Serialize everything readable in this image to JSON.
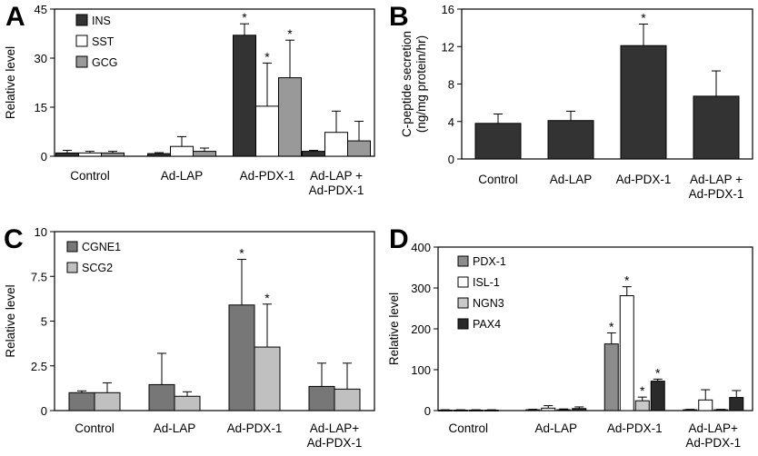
{
  "chart_data": [
    {
      "panel_label": "A",
      "type": "bar",
      "ylabel": "Relative level",
      "ylim": [
        0,
        45
      ],
      "yticks": [
        "0",
        "15",
        "30",
        "45"
      ],
      "categories": [
        [
          "Control"
        ],
        [
          "Ad-LAP"
        ],
        [
          "Ad-PDX-1"
        ],
        [
          "Ad-LAP +",
          "Ad-PDX-1"
        ]
      ],
      "legend_position": "top-left",
      "series": [
        {
          "name": "INS",
          "color": "#333333",
          "values": [
            1.0,
            0.8,
            37.0,
            1.5
          ],
          "errors": [
            0.8,
            0.3,
            3.5,
            0.3
          ],
          "significant": [
            false,
            false,
            true,
            false
          ]
        },
        {
          "name": "SST",
          "color": "#ffffff",
          "values": [
            1.0,
            3.0,
            15.3,
            7.3
          ],
          "errors": [
            0.5,
            3.0,
            13.2,
            6.5
          ],
          "significant": [
            false,
            false,
            true,
            false
          ]
        },
        {
          "name": "GCG",
          "color": "#999999",
          "values": [
            1.0,
            1.5,
            24.0,
            4.7
          ],
          "errors": [
            0.5,
            1.0,
            11.5,
            6.0
          ],
          "significant": [
            false,
            false,
            true,
            false
          ]
        }
      ],
      "significance_mark": "*"
    },
    {
      "panel_label": "B",
      "type": "bar",
      "ylabel": "C-peptide secretion\n(ng/mg protein/hr)",
      "ylim": [
        0,
        16
      ],
      "yticks": [
        "0",
        "4",
        "8",
        "12",
        "16"
      ],
      "categories": [
        [
          "Control"
        ],
        [
          "Ad-LAP"
        ],
        [
          "Ad-PDX-1"
        ],
        [
          "Ad-LAP +",
          "Ad-PDX-1"
        ]
      ],
      "legend_position": "none",
      "series": [
        {
          "name": "",
          "color": "#333333",
          "values": [
            3.8,
            4.1,
            12.1,
            6.7
          ],
          "errors": [
            1.0,
            1.0,
            2.3,
            2.7
          ],
          "significant": [
            false,
            false,
            true,
            false
          ]
        }
      ],
      "significance_mark": "*"
    },
    {
      "panel_label": "C",
      "type": "bar",
      "ylabel": "Relative level",
      "ylim": [
        0,
        10
      ],
      "yticks": [
        "0",
        "2.5",
        "5",
        "7.5",
        "10"
      ],
      "categories": [
        [
          "Control"
        ],
        [
          "Ad-LAP"
        ],
        [
          "Ad-PDX-1"
        ],
        [
          "Ad-LAP+",
          "Ad-PDX-1"
        ]
      ],
      "legend_position": "top-left",
      "series": [
        {
          "name": "CGNE1",
          "color": "#777777",
          "values": [
            1.0,
            1.45,
            5.9,
            1.35
          ],
          "errors": [
            0.1,
            1.75,
            2.55,
            1.3
          ],
          "significant": [
            false,
            false,
            true,
            false
          ]
        },
        {
          "name": "SCG2",
          "color": "#c0c0c0",
          "values": [
            1.0,
            0.8,
            3.55,
            1.2
          ],
          "errors": [
            0.55,
            0.25,
            2.4,
            1.45
          ],
          "significant": [
            false,
            false,
            true,
            false
          ]
        }
      ],
      "significance_mark": "*"
    },
    {
      "panel_label": "D",
      "type": "bar",
      "ylabel": "Relative level",
      "ylim": [
        0,
        400
      ],
      "yticks": [
        "0",
        "100",
        "200",
        "300",
        "400"
      ],
      "categories": [
        [
          "Control"
        ],
        [
          "Ad-LAP"
        ],
        [
          "Ad-PDX-1"
        ],
        [
          "Ad-LAP+",
          "Ad-PDX-1"
        ]
      ],
      "legend_position": "top-left",
      "series": [
        {
          "name": "PDX-1",
          "color": "#8c8c8c",
          "values": [
            1,
            2,
            163,
            2
          ],
          "errors": [
            1,
            1,
            27,
            1
          ],
          "significant": [
            false,
            false,
            true,
            false
          ]
        },
        {
          "name": "ISL-1",
          "color": "#ffffff",
          "values": [
            1,
            6,
            281,
            26
          ],
          "errors": [
            1,
            6,
            22,
            25
          ],
          "significant": [
            false,
            false,
            true,
            false
          ]
        },
        {
          "name": "NGN3",
          "color": "#c8c8c8",
          "values": [
            1,
            2,
            24,
            2
          ],
          "errors": [
            1,
            2,
            9,
            1
          ],
          "significant": [
            false,
            false,
            true,
            false
          ]
        },
        {
          "name": "PAX4",
          "color": "#2a2a2a",
          "values": [
            1,
            5,
            72,
            32
          ],
          "errors": [
            1,
            4,
            5,
            17
          ],
          "significant": [
            false,
            false,
            true,
            false
          ]
        }
      ],
      "significance_mark": "*"
    }
  ]
}
